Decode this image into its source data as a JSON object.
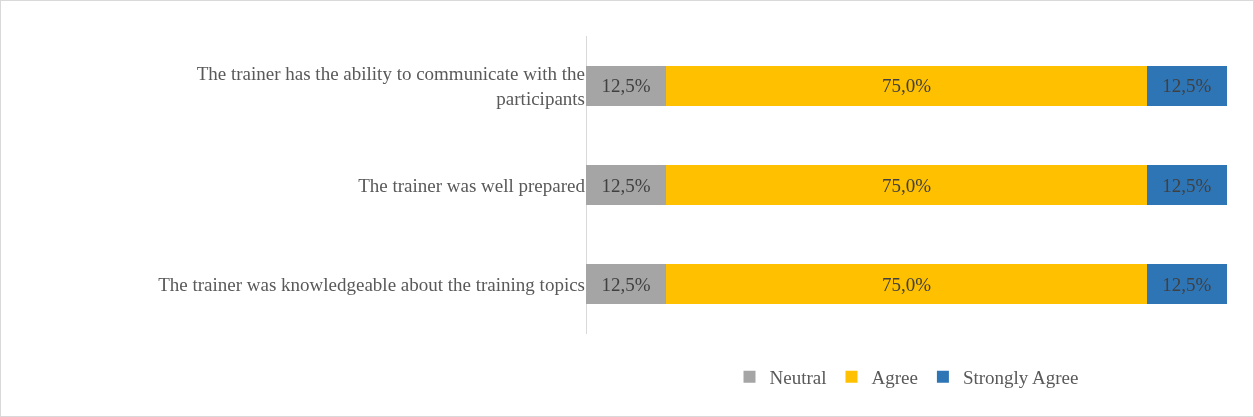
{
  "chart_data": {
    "type": "bar",
    "orientation": "horizontal",
    "stacked": true,
    "categories": [
      "The trainer has the ability to communicate with the participants",
      "The trainer was well prepared",
      "The trainer was knowledgeable about the training topics"
    ],
    "series": [
      {
        "name": "Neutral",
        "color": "#a5a5a5",
        "values": [
          12.5,
          12.5,
          12.5
        ],
        "value_labels": [
          "12,5%",
          "12,5%",
          "12,5%"
        ]
      },
      {
        "name": "Agree",
        "color": "#ffc000",
        "values": [
          75.0,
          75.0,
          75.0
        ],
        "value_labels": [
          "75,0%",
          "75,0%",
          "75,0%"
        ]
      },
      {
        "name": "Strongly Agree",
        "color": "#2e75b6",
        "values": [
          12.5,
          12.5,
          12.5
        ],
        "value_labels": [
          "12,5%",
          "12,5%",
          "12,5%"
        ]
      }
    ],
    "xlim": [
      0,
      100
    ],
    "tick_labels": "y",
    "legend": "bottom"
  }
}
